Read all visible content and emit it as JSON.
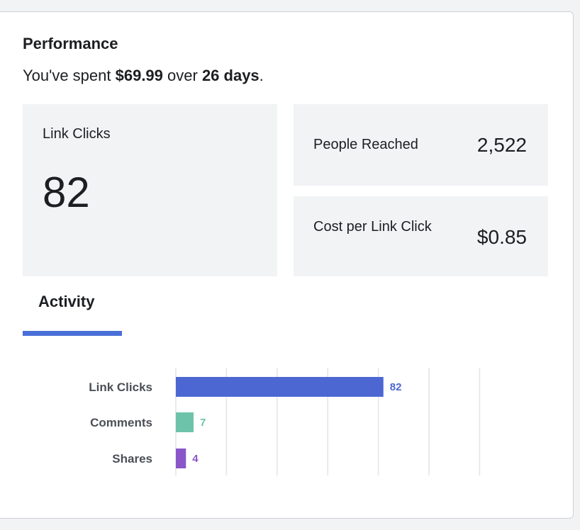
{
  "performance": {
    "title": "Performance",
    "spend_prefix": "You've spent ",
    "spend_amount": "$69.99",
    "spend_middle": " over ",
    "spend_days": "26 days",
    "spend_suffix": "."
  },
  "metrics": {
    "link_clicks": {
      "label": "Link Clicks",
      "value": "82"
    },
    "people_reached": {
      "label": "People Reached",
      "value": "2,522"
    },
    "cost_per_click": {
      "label": "Cost per Link Click",
      "value": "$0.85"
    }
  },
  "tabs": [
    {
      "label": "Activity",
      "active": true
    }
  ],
  "colors": {
    "tab_underline": "#4a6fd8",
    "link_clicks": "#4c67d2",
    "comments": "#6cc3aa",
    "shares": "#8a55c9"
  },
  "chart_data": {
    "type": "bar",
    "orientation": "horizontal",
    "categories": [
      "Link Clicks",
      "Comments",
      "Shares"
    ],
    "values": [
      82,
      7,
      4
    ],
    "value_labels": [
      "82",
      "7",
      "4"
    ],
    "colors": [
      "#4c67d2",
      "#6cc3aa",
      "#8a55c9"
    ],
    "xlim": [
      0,
      120
    ],
    "grid": true,
    "title": "",
    "xlabel": "",
    "ylabel": ""
  }
}
